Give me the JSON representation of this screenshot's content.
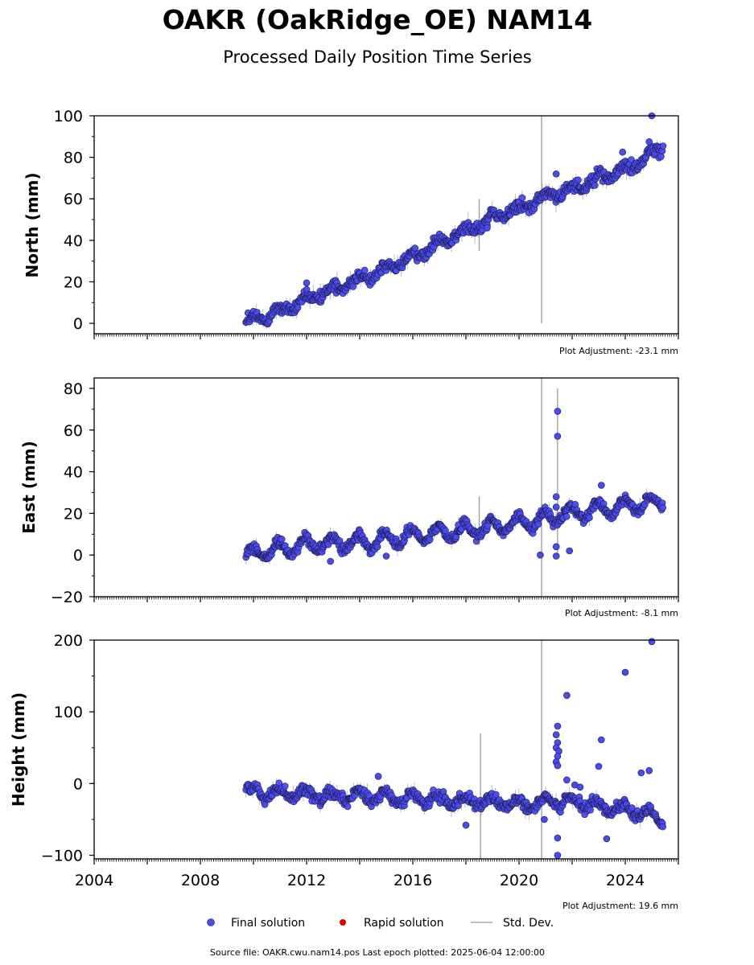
{
  "page": {
    "title": "OAKR (OakRidge_OE) NAM14",
    "subtitle": "Processed Daily Position Time Series",
    "source_note": "Source file: OAKR.cwu.nam14.pos  Last epoch plotted: 2025-06-04 12:00:00"
  },
  "colors": {
    "final": "#4a4af0",
    "final_edge": "#1a1a40",
    "rapid": "#e00000",
    "stddev": "#bdbdbd"
  },
  "legend": {
    "final": "Final solution",
    "rapid": "Rapid solution",
    "stddev": "Std. Dev."
  },
  "chart_data": [
    {
      "type": "scatter",
      "name": "north",
      "ylabel": "North (mm)",
      "ylim": [
        -5,
        100
      ],
      "yticks": [
        0,
        20,
        40,
        60,
        80,
        100
      ],
      "xlim": [
        2004,
        2026
      ],
      "adjustment": "Plot Adjustment: -23.1 mm",
      "trend": [
        [
          2009.7,
          0
        ],
        [
          2012.0,
          11
        ],
        [
          2016.0,
          32
        ],
        [
          2018.5,
          48
        ],
        [
          2020.5,
          58
        ],
        [
          2021.1,
          62
        ],
        [
          2021.6,
          63
        ],
        [
          2023.0,
          70
        ],
        [
          2024.0,
          74
        ],
        [
          2025.4,
          85
        ]
      ],
      "amplitude": 2.0,
      "noise": 1.5,
      "outliers": [
        [
          2012.0,
          19.5
        ],
        [
          2018.8,
          46
        ],
        [
          2021.4,
          72
        ],
        [
          2023.9,
          82.5
        ],
        [
          2025.0,
          100
        ],
        [
          2024.9,
          87.5
        ]
      ],
      "big_errors": [
        [
          2018.5,
          60,
          35
        ],
        [
          2020.85,
          100,
          0
        ]
      ]
    },
    {
      "type": "scatter",
      "name": "east",
      "ylabel": "East (mm)",
      "ylim": [
        -20,
        85
      ],
      "yticks": [
        -20,
        0,
        20,
        40,
        60,
        80
      ],
      "xlim": [
        2004,
        2026
      ],
      "adjustment": "Plot Adjustment: -8.1 mm",
      "trend": [
        [
          2009.7,
          0
        ],
        [
          2012.0,
          5
        ],
        [
          2014.0,
          6
        ],
        [
          2016.0,
          9
        ],
        [
          2018.0,
          12
        ],
        [
          2020.0,
          15
        ],
        [
          2021.5,
          19
        ],
        [
          2023.0,
          22
        ],
        [
          2024.5,
          24
        ],
        [
          2025.4,
          26
        ]
      ],
      "amplitude": 3.5,
      "noise": 1.2,
      "outliers": [
        [
          2021.45,
          69
        ],
        [
          2021.45,
          57
        ],
        [
          2021.4,
          28
        ],
        [
          2021.4,
          23
        ],
        [
          2020.8,
          0
        ],
        [
          2021.4,
          -0.5
        ],
        [
          2021.4,
          4
        ],
        [
          2021.9,
          2
        ],
        [
          2023.1,
          33.5
        ],
        [
          2015.0,
          -0.5
        ],
        [
          2012.9,
          -3
        ]
      ],
      "big_errors": [
        [
          2018.5,
          28,
          5
        ],
        [
          2020.85,
          85,
          -20
        ],
        [
          2021.45,
          80,
          0
        ]
      ]
    },
    {
      "type": "scatter",
      "name": "height",
      "ylabel": "Height (mm)",
      "ylim": [
        -105,
        200
      ],
      "yticks": [
        -100,
        0,
        100,
        200
      ],
      "xlim": [
        2004,
        2026
      ],
      "xticks": [
        2004,
        2008,
        2012,
        2016,
        2020,
        2024
      ],
      "adjustment": "Plot Adjustment: 19.6 mm",
      "trend": [
        [
          2009.7,
          -10
        ],
        [
          2012.0,
          -15
        ],
        [
          2014.0,
          -18
        ],
        [
          2016.0,
          -20
        ],
        [
          2018.0,
          -25
        ],
        [
          2020.0,
          -28
        ],
        [
          2021.5,
          -25
        ],
        [
          2023.0,
          -30
        ],
        [
          2024.5,
          -40
        ],
        [
          2025.4,
          -52
        ]
      ],
      "amplitude": 7.0,
      "noise": 4.0,
      "outliers": [
        [
          2025.0,
          198
        ],
        [
          2024.0,
          155
        ],
        [
          2021.8,
          123
        ],
        [
          2023.1,
          61
        ],
        [
          2023.0,
          24
        ],
        [
          2024.6,
          15
        ],
        [
          2024.9,
          18
        ],
        [
          2021.45,
          80
        ],
        [
          2021.4,
          68
        ],
        [
          2021.45,
          57
        ],
        [
          2021.4,
          50
        ],
        [
          2021.5,
          45
        ],
        [
          2021.45,
          38
        ],
        [
          2021.4,
          30
        ],
        [
          2021.45,
          25
        ],
        [
          2021.8,
          5
        ],
        [
          2022.1,
          -2
        ],
        [
          2022.3,
          -5
        ],
        [
          2014.7,
          10
        ],
        [
          2018.0,
          -58
        ],
        [
          2021.45,
          -76
        ],
        [
          2021.45,
          -100
        ],
        [
          2023.3,
          -77
        ],
        [
          2020.95,
          -50
        ]
      ],
      "big_errors": [
        [
          2018.55,
          70,
          -105
        ],
        [
          2020.85,
          200,
          -105
        ]
      ]
    }
  ]
}
